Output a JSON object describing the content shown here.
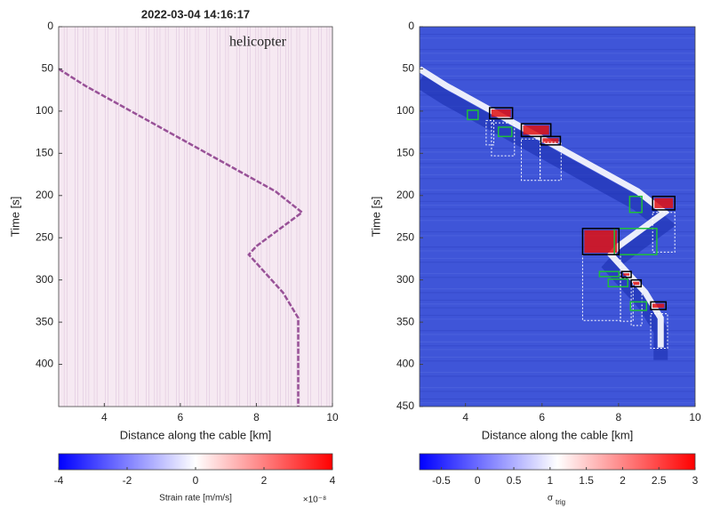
{
  "chart_data": [
    {
      "type": "heatmap",
      "title": "2022-03-04 14:16:17",
      "annotation": "helicopter",
      "xlabel": "Distance along the cable [km]",
      "ylabel": "Time [s]",
      "xlim": [
        2.8,
        10
      ],
      "ylim": [
        0,
        450
      ],
      "y_inverted": true,
      "xticks": [
        4,
        6,
        8,
        10
      ],
      "yticks": [
        0,
        50,
        100,
        150,
        200,
        250,
        300,
        350,
        400
      ],
      "background": "#f6e9f2",
      "color": "#7a1f7a",
      "track": {
        "x": [
          2.8,
          3.5,
          4.5,
          5.5,
          6.5,
          7.5,
          8.5,
          9.2,
          8.6,
          8.0,
          7.8,
          8.2,
          8.7,
          9.1,
          9.1
        ],
        "y": [
          50,
          70,
          95,
          120,
          145,
          170,
          195,
          220,
          240,
          260,
          270,
          290,
          315,
          345,
          450
        ]
      },
      "colorbar": {
        "label": "Strain rate [m/m/s]",
        "exponent_label": "×10⁻⁸",
        "clim": [
          -4,
          4
        ],
        "ticks": [
          -4,
          -2,
          0,
          2,
          4
        ],
        "colors": [
          "#0000ff",
          "#ffffff",
          "#ff0000"
        ]
      }
    },
    {
      "type": "heatmap",
      "xlabel": "Distance along the cable [km]",
      "ylabel": "Time [s]",
      "xlim": [
        2.8,
        10
      ],
      "ylim": [
        0,
        450
      ],
      "y_inverted": true,
      "xticks": [
        4,
        6,
        8,
        10
      ],
      "yticks": [
        0,
        50,
        100,
        150,
        200,
        250,
        300,
        350,
        400,
        450
      ],
      "background": "#3f55d8",
      "color": "#ffffff",
      "track": {
        "x": [
          2.8,
          3.5,
          4.5,
          5.5,
          6.5,
          7.5,
          8.5,
          9.2,
          8.6,
          8.0,
          7.8,
          8.2,
          8.7,
          9.1,
          9.1
        ],
        "y": [
          50,
          70,
          95,
          120,
          145,
          170,
          195,
          220,
          240,
          260,
          270,
          290,
          315,
          345,
          380
        ]
      },
      "detection_boxes": [
        [
          4.63,
          5.23,
          96,
          109
        ],
        [
          5.46,
          6.23,
          115,
          130
        ],
        [
          5.97,
          6.48,
          130,
          140
        ],
        [
          8.89,
          9.47,
          201,
          217
        ],
        [
          7.06,
          8.01,
          239,
          270
        ],
        [
          8.08,
          8.33,
          290,
          297
        ],
        [
          8.33,
          8.59,
          300,
          308
        ],
        [
          8.84,
          9.24,
          326,
          335
        ]
      ],
      "green_boxes": [
        [
          4.05,
          4.33,
          99,
          110
        ],
        [
          4.86,
          5.21,
          119,
          130
        ],
        [
          8.29,
          8.61,
          201,
          220
        ],
        [
          7.89,
          9.0,
          239,
          270
        ],
        [
          7.5,
          8.01,
          290,
          296
        ],
        [
          7.73,
          8.24,
          299,
          308
        ],
        [
          8.31,
          8.73,
          326,
          336
        ]
      ],
      "window_boxes": [
        [
          4.54,
          4.74,
          111,
          140
        ],
        [
          4.68,
          5.28,
          114,
          153
        ],
        [
          5.46,
          5.95,
          133,
          182
        ],
        [
          5.95,
          6.5,
          137,
          182
        ],
        [
          8.89,
          9.47,
          220,
          267
        ],
        [
          7.06,
          8.05,
          270,
          348
        ],
        [
          8.05,
          8.38,
          298,
          349
        ],
        [
          8.33,
          8.61,
          308,
          354
        ],
        [
          8.84,
          9.28,
          340,
          381
        ]
      ],
      "colorbar": {
        "label": "σ",
        "label_subscript": "trig",
        "clim": [
          -0.8,
          3
        ],
        "ticks": [
          -0.5,
          0,
          0.5,
          1,
          1.5,
          2,
          2.5,
          3
        ],
        "colors": [
          "#0000ff",
          "#ffffff",
          "#ff0000"
        ]
      }
    }
  ]
}
